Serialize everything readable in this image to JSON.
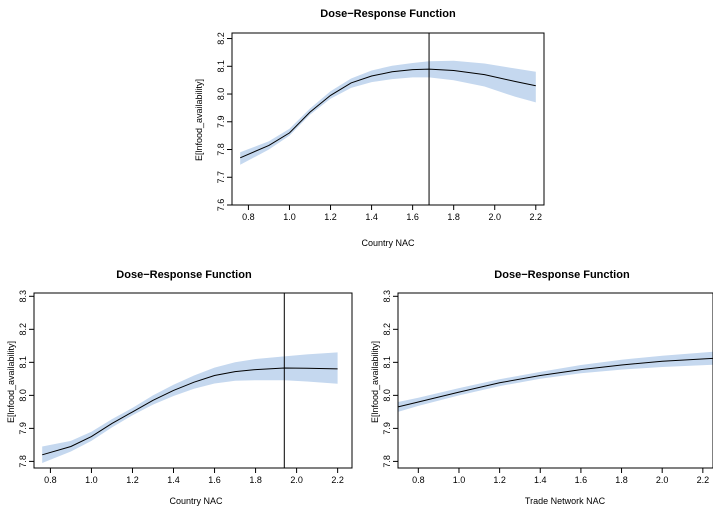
{
  "chart_data": [
    {
      "type": "line",
      "title": "Dose−Response Function",
      "xlabel": "Country NAC",
      "ylabel": "E[lnfood_availability]",
      "xlim": [
        0.72,
        2.24
      ],
      "ylim": [
        7.6,
        8.22
      ],
      "xticks": [
        0.8,
        1.0,
        1.2,
        1.4,
        1.6,
        1.8,
        2.0,
        2.2
      ],
      "xtick_labels": [
        "0.8",
        "1.0",
        "1.2",
        "1.4",
        "1.6",
        "1.8",
        "2.0",
        "2.2"
      ],
      "yticks": [
        7.6,
        7.7,
        7.8,
        7.9,
        8.0,
        8.1,
        8.2
      ],
      "ytick_labels": [
        "7.6",
        "7.7",
        "7.8",
        "7.9",
        "8.0",
        "8.1",
        "8.2"
      ],
      "vline": 1.68,
      "band_color": "#c5d8ef",
      "line_color": "#000000",
      "series": [
        {
          "x": [
            0.76,
            0.9,
            1.0,
            1.1,
            1.2,
            1.3,
            1.4,
            1.5,
            1.6,
            1.68,
            1.8,
            1.95,
            2.1,
            2.2
          ],
          "y": [
            7.77,
            7.815,
            7.86,
            7.935,
            7.995,
            8.04,
            8.065,
            8.08,
            8.088,
            8.09,
            8.085,
            8.07,
            8.045,
            8.03
          ],
          "lower": [
            7.745,
            7.8,
            7.85,
            7.925,
            7.983,
            8.022,
            8.043,
            8.054,
            8.06,
            8.06,
            8.05,
            8.027,
            7.99,
            7.97
          ],
          "upper": [
            7.79,
            7.83,
            7.875,
            7.948,
            8.01,
            8.056,
            8.085,
            8.102,
            8.112,
            8.118,
            8.12,
            8.11,
            8.092,
            8.08
          ]
        }
      ]
    },
    {
      "type": "line",
      "title": "Dose−Response Function",
      "xlabel": "Country NAC",
      "ylabel": "E[lnfood_availability]",
      "xlim": [
        0.72,
        2.27
      ],
      "ylim": [
        7.78,
        8.31
      ],
      "xticks": [
        0.8,
        1.0,
        1.2,
        1.4,
        1.6,
        1.8,
        2.0,
        2.2
      ],
      "xtick_labels": [
        "0.8",
        "1.0",
        "1.2",
        "1.4",
        "1.6",
        "1.8",
        "2.0",
        "2.2"
      ],
      "yticks": [
        7.8,
        7.9,
        8.0,
        8.1,
        8.2,
        8.3
      ],
      "ytick_labels": [
        "7.8",
        "7.9",
        "8.0",
        "8.1",
        "8.2",
        "8.3"
      ],
      "vline": 1.94,
      "band_color": "#c5d8ef",
      "line_color": "#000000",
      "series": [
        {
          "x": [
            0.76,
            0.9,
            1.0,
            1.1,
            1.2,
            1.3,
            1.4,
            1.5,
            1.6,
            1.7,
            1.8,
            1.94,
            2.05,
            2.2
          ],
          "y": [
            7.82,
            7.845,
            7.875,
            7.915,
            7.95,
            7.985,
            8.015,
            8.04,
            8.06,
            8.072,
            8.078,
            8.083,
            8.082,
            8.08
          ],
          "lower": [
            7.795,
            7.83,
            7.862,
            7.903,
            7.94,
            7.972,
            7.998,
            8.02,
            8.036,
            8.044,
            8.046,
            8.046,
            8.042,
            8.035
          ],
          "upper": [
            7.845,
            7.862,
            7.89,
            7.928,
            7.962,
            8.0,
            8.032,
            8.06,
            8.084,
            8.1,
            8.11,
            8.118,
            8.124,
            8.13
          ]
        }
      ]
    },
    {
      "type": "line",
      "title": "Dose−Response Function",
      "xlabel": "Trade Network NAC",
      "ylabel": "E[lnfood_availability]",
      "xlim": [
        0.7,
        2.25
      ],
      "ylim": [
        7.78,
        8.31
      ],
      "xticks": [
        0.8,
        1.0,
        1.2,
        1.4,
        1.6,
        1.8,
        2.0,
        2.2
      ],
      "xtick_labels": [
        "0.8",
        "1.0",
        "1.2",
        "1.4",
        "1.6",
        "1.8",
        "2.0",
        "2.2"
      ],
      "yticks": [
        7.8,
        7.9,
        8.0,
        8.1,
        8.2,
        8.3
      ],
      "ytick_labels": [
        "7.8",
        "7.9",
        "8.0",
        "8.1",
        "8.2",
        "8.3"
      ],
      "vline": null,
      "band_color": "#c5d8ef",
      "line_color": "#000000",
      "series": [
        {
          "x": [
            0.7,
            0.8,
            1.0,
            1.2,
            1.4,
            1.6,
            1.8,
            2.0,
            2.25
          ],
          "y": [
            7.965,
            7.98,
            8.01,
            8.038,
            8.06,
            8.078,
            8.092,
            8.103,
            8.112
          ],
          "lower": [
            7.95,
            7.968,
            8.0,
            8.028,
            8.05,
            8.067,
            8.078,
            8.086,
            8.093
          ],
          "upper": [
            7.98,
            7.993,
            8.022,
            8.049,
            8.071,
            8.092,
            8.108,
            8.12,
            8.132
          ]
        }
      ]
    }
  ]
}
